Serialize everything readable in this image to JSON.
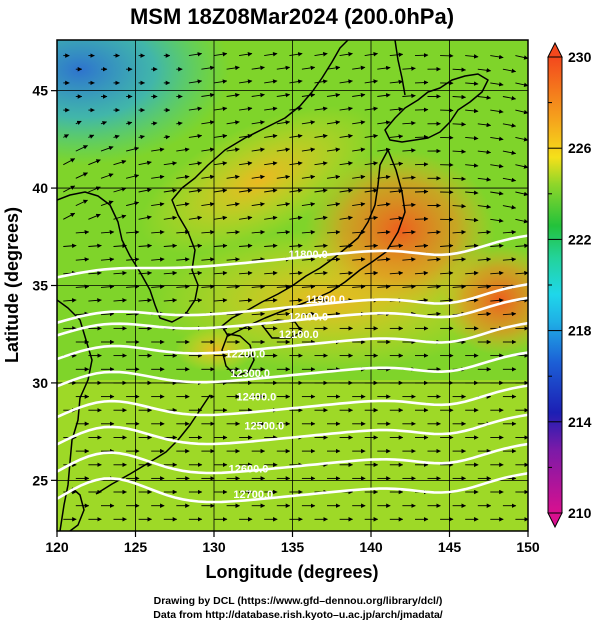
{
  "title": "MSM 18Z08Mar2024 (200.0hPa)",
  "chart_data": {
    "type": "heatmap",
    "title": "MSM 18Z08Mar2024 (200.0hPa)",
    "xlabel": "Longitude (degrees)",
    "ylabel": "Latitude  (degrees)",
    "xlim": [
      120,
      150
    ],
    "ylim": [
      22.4,
      47.6
    ],
    "xticks": [
      "120",
      "125",
      "130",
      "135",
      "140",
      "145",
      "150"
    ],
    "yticks": [
      "25",
      "30",
      "35",
      "40",
      "45"
    ],
    "grid": true,
    "colorbar": {
      "range": [
        210,
        230
      ],
      "ticks": [
        "210",
        "214",
        "218",
        "222",
        "226",
        "230"
      ],
      "colors": [
        "#d9108f",
        "#1c1fb4",
        "#1fd7ea",
        "#23c23b",
        "#f5e01a",
        "#f3481d"
      ]
    },
    "wind_vectors": "westerly",
    "contours": [
      {
        "label": "11800.0",
        "lat_at_140": 36.8
      },
      {
        "label": "11900.0",
        "lat_at_140": 34.3
      },
      {
        "label": "12000.0",
        "lat_at_140": 33.6
      },
      {
        "label": "12100.0",
        "lat_at_140": 32.3
      },
      {
        "label": "12200.0",
        "lat_at_140": 30.8
      },
      {
        "label": "12300.0",
        "lat_at_140": 29.1
      },
      {
        "label": "12400.0",
        "lat_at_140": 27.6
      },
      {
        "label": "12500.0",
        "lat_at_140": 26.1
      },
      {
        "label": "12600.0",
        "lat_at_140": 24.6
      }
    ],
    "contour_labels": [
      {
        "text": "11800.0",
        "lon": 136.0,
        "lat": 36.4
      },
      {
        "text": "11900.0",
        "lon": 137.1,
        "lat": 34.1
      },
      {
        "text": "12000.0",
        "lon": 136.0,
        "lat": 33.2
      },
      {
        "text": "12100.0",
        "lon": 135.4,
        "lat": 32.3
      },
      {
        "text": "12200.0",
        "lon": 132.0,
        "lat": 31.3
      },
      {
        "text": "12300.0",
        "lon": 132.3,
        "lat": 30.3
      },
      {
        "text": "12400.0",
        "lon": 132.7,
        "lat": 29.1
      },
      {
        "text": "12500.0",
        "lon": 133.2,
        "lat": 27.6
      },
      {
        "text": "12600.0",
        "lon": 132.2,
        "lat": 25.4
      },
      {
        "text": "12700.0",
        "lon": 132.5,
        "lat": 24.1
      }
    ]
  },
  "footer": {
    "line1": "Drawing by DCL (https://www.gfd–dennou.org/library/dcl/)",
    "line2": "Data from http://database.rish.kyoto–u.ac.jp/arch/jmadata/"
  }
}
